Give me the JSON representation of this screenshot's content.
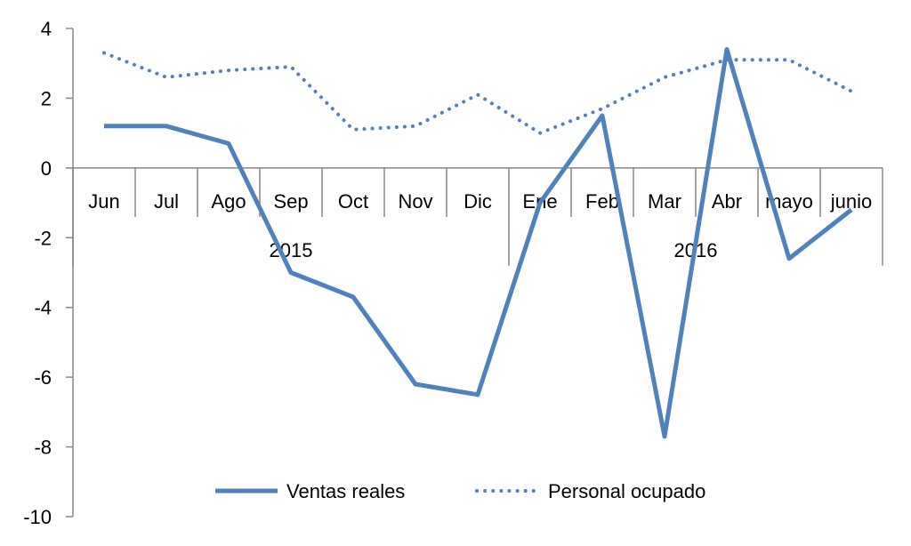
{
  "chart_data": {
    "type": "line",
    "categories": [
      "Jun",
      "Jul",
      "Ago",
      "Sep",
      "Oct",
      "Nov",
      "Dic",
      "Ene",
      "Feb",
      "Mar",
      "Abr",
      "mayo",
      "junio"
    ],
    "year_groups": [
      {
        "label": "2015",
        "count": 7
      },
      {
        "label": "2016",
        "count": 6
      }
    ],
    "series": [
      {
        "name": "Ventas reales",
        "style": "solid",
        "color": "#4f81bd",
        "values": [
          1.2,
          1.2,
          0.7,
          -3.0,
          -3.7,
          -6.2,
          -6.5,
          -1.0,
          1.5,
          -7.7,
          3.4,
          -2.6,
          -1.2
        ]
      },
      {
        "name": "Personal ocupado",
        "style": "dotted",
        "color": "#4f81bd",
        "values": [
          3.3,
          2.6,
          2.8,
          2.9,
          1.1,
          1.2,
          2.1,
          1.0,
          1.7,
          2.6,
          3.1,
          3.1,
          2.2
        ]
      }
    ],
    "ylim": [
      -10,
      4
    ],
    "yticks": [
      "-10",
      "-8",
      "-6",
      "-4",
      "-2",
      "0",
      "2",
      "4"
    ],
    "ytick_values": [
      -10,
      -8,
      -6,
      -4,
      -2,
      0,
      2,
      4
    ],
    "grid": false,
    "legend_position": "bottom",
    "title": "",
    "xlabel": "",
    "ylabel": ""
  }
}
